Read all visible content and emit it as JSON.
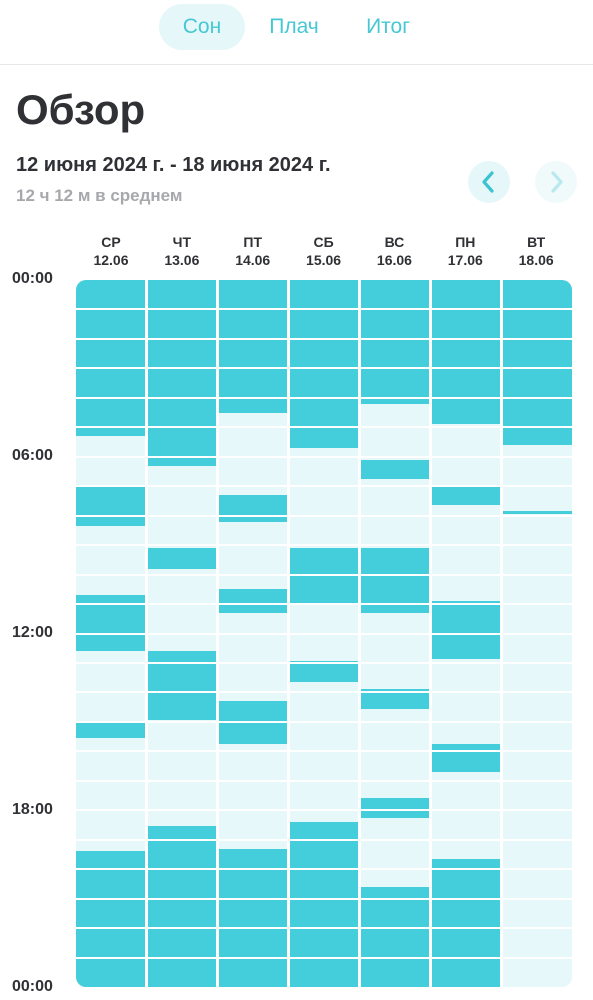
{
  "tabs": [
    {
      "label": "Сон",
      "active": true
    },
    {
      "label": "Плач",
      "active": false
    },
    {
      "label": "Итог",
      "active": false
    }
  ],
  "page_title": "Обзор",
  "date_range": "12 июня 2024 г. - 18 июня 2024 г.",
  "average": "12 ч 12 м в среднем",
  "colors": {
    "sleep": "#44cdda",
    "empty": "#e7f8fa",
    "accent": "#45c8d4"
  },
  "time_labels": [
    "00:00",
    "06:00",
    "12:00",
    "18:00",
    "00:00"
  ],
  "days": [
    {
      "dow": "СР",
      "date": "12.06",
      "sleep": [
        [
          0,
          5.3
        ],
        [
          7.0,
          8.35
        ],
        [
          10.7,
          12.6
        ],
        [
          15.0,
          15.55
        ],
        [
          19.4,
          24
        ]
      ]
    },
    {
      "dow": "ЧТ",
      "date": "13.06",
      "sleep": [
        [
          0,
          6.3
        ],
        [
          9.1,
          9.8
        ],
        [
          12.6,
          14.95
        ],
        [
          18.55,
          24
        ]
      ]
    },
    {
      "dow": "ПТ",
      "date": "14.06",
      "sleep": [
        [
          0,
          4.5
        ],
        [
          7.3,
          8.2
        ],
        [
          10.5,
          11.3
        ],
        [
          14.3,
          15.75
        ],
        [
          19.3,
          24
        ]
      ]
    },
    {
      "dow": "СБ",
      "date": "15.06",
      "sleep": [
        [
          0,
          5.7
        ],
        [
          9.1,
          10.95
        ],
        [
          12.95,
          13.65
        ],
        [
          18.4,
          24
        ]
      ]
    },
    {
      "dow": "ВС",
      "date": "16.06",
      "sleep": [
        [
          0,
          4.2
        ],
        [
          6.1,
          6.75
        ],
        [
          9.1,
          11.3
        ],
        [
          13.9,
          14.55
        ],
        [
          17.6,
          18.25
        ],
        [
          20.6,
          24
        ]
      ]
    },
    {
      "dow": "ПН",
      "date": "17.06",
      "sleep": [
        [
          0,
          4.9
        ],
        [
          7.0,
          7.65
        ],
        [
          10.9,
          12.85
        ],
        [
          15.75,
          16.7
        ],
        [
          19.65,
          24
        ]
      ]
    },
    {
      "dow": "ВТ",
      "date": "18.06",
      "sleep": [
        [
          0,
          5.6
        ],
        [
          7.85,
          7.95
        ]
      ]
    }
  ]
}
